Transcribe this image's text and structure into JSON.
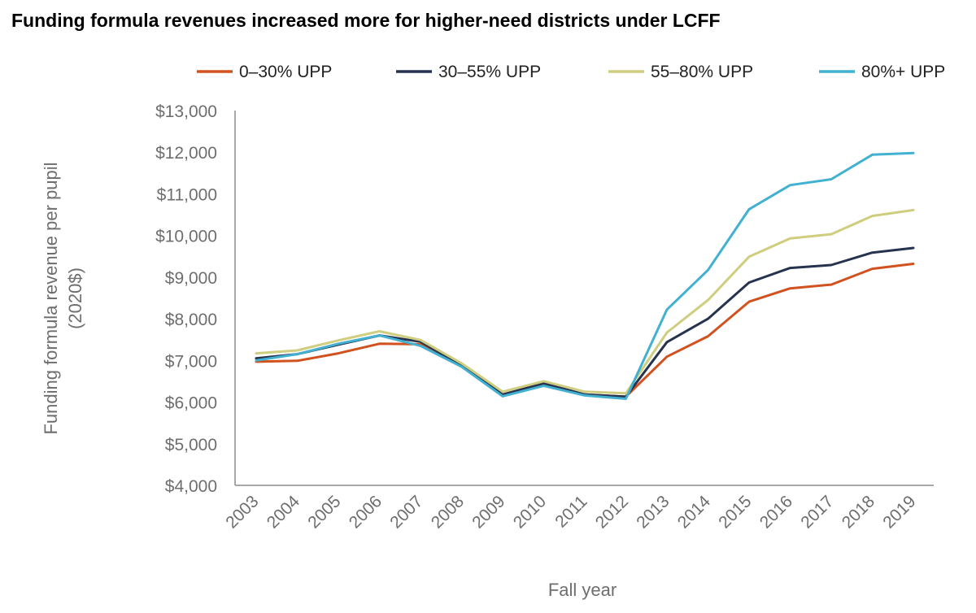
{
  "title": "Funding formula revenues increased more for higher-need districts under LCFF",
  "chart_data": {
    "type": "line",
    "title": "Funding formula revenues increased more for higher-need districts under LCFF",
    "xlabel": "Fall year",
    "ylabel_lines": [
      "Funding formula revenue per pupil",
      "(2020$)"
    ],
    "x": [
      "2003",
      "2004",
      "2005",
      "2006",
      "2007",
      "2008",
      "2009",
      "2010",
      "2011",
      "2012",
      "2013",
      "2014",
      "2015",
      "2016",
      "2017",
      "2018",
      "2019"
    ],
    "yticks": [
      "$4,000",
      "$5,000",
      "$6,000",
      "$7,000",
      "$8,000",
      "$9,000",
      "$10,000",
      "$11,000",
      "$12,000",
      "$13,000"
    ],
    "ylim": [
      4000,
      13000
    ],
    "legend_position": "top",
    "grid": false,
    "series": [
      {
        "name": "0–30% UPP",
        "color": "#d1521f",
        "values": [
          6970,
          6990,
          7170,
          7400,
          7390,
          6870,
          6180,
          6430,
          6180,
          6130,
          7090,
          7580,
          8410,
          8730,
          8820,
          9200,
          9320
        ]
      },
      {
        "name": "30–55% UPP",
        "color": "#26334f",
        "values": [
          7050,
          7150,
          7380,
          7600,
          7450,
          6880,
          6180,
          6450,
          6180,
          6130,
          7440,
          8000,
          8870,
          9220,
          9290,
          9590,
          9700
        ]
      },
      {
        "name": "55–80% UPP",
        "color": "#cfcd7e",
        "values": [
          7170,
          7240,
          7480,
          7700,
          7490,
          6930,
          6250,
          6500,
          6250,
          6210,
          7670,
          8450,
          9490,
          9930,
          10030,
          10470,
          10610
        ]
      },
      {
        "name": "80%+ UPP",
        "color": "#41b0d1",
        "values": [
          7000,
          7150,
          7400,
          7600,
          7350,
          6850,
          6140,
          6390,
          6160,
          6080,
          8220,
          9170,
          10630,
          11210,
          11350,
          11940,
          11980
        ]
      }
    ]
  }
}
